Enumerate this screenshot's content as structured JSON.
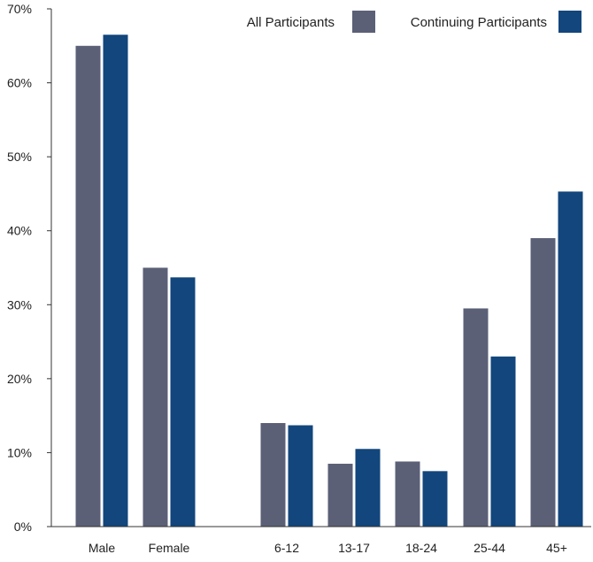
{
  "chart_data": {
    "type": "bar",
    "categories": [
      "Male",
      "Female",
      "6-12",
      "13-17",
      "18-24",
      "25-44",
      "45+"
    ],
    "series": [
      {
        "name": "All Participants",
        "color": "#5b6077",
        "values": [
          65,
          35,
          14,
          8.5,
          8.8,
          29.5,
          39
        ]
      },
      {
        "name": "Continuing Participants",
        "color": "#12467c",
        "values": [
          66.5,
          33.7,
          13.7,
          10.5,
          7.5,
          23,
          45.3
        ]
      }
    ],
    "y_ticks": [
      "0%",
      "10%",
      "20%",
      "30%",
      "40%",
      "50%",
      "60%",
      "70%"
    ],
    "ylim": [
      0,
      70
    ],
    "legend_position": "top-right",
    "grid": false,
    "title": "",
    "xlabel": "",
    "ylabel": ""
  }
}
